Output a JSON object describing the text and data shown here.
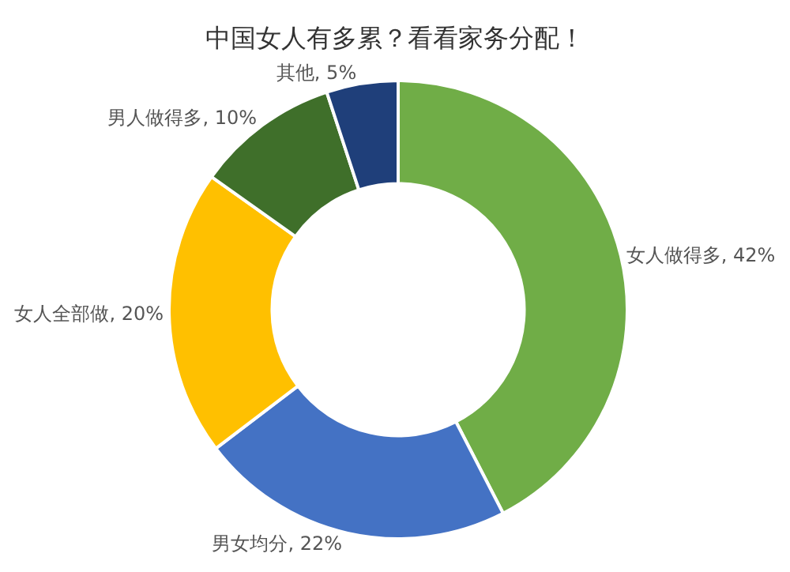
{
  "chart_data": {
    "type": "donut",
    "title": "中国女人有多累？看看家务分配！",
    "categories": [
      "女人做得多",
      "男女均分",
      "女人全部做",
      "男人做得多",
      "其他"
    ],
    "values": [
      42,
      22,
      20,
      10,
      5
    ],
    "value_labels": [
      "42%",
      "22%",
      "20%",
      "10%",
      "5%"
    ],
    "colors": [
      "#70ad47",
      "#4472c4",
      "#ffc000",
      "#3f6f2a",
      "#1f3f7a"
    ],
    "legend": false
  }
}
